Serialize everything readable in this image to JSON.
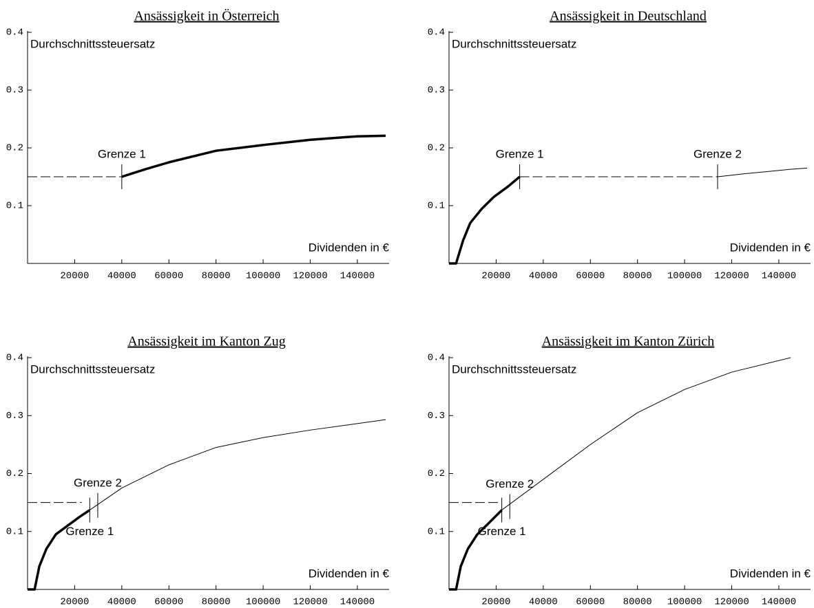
{
  "chart_data": [
    {
      "type": "line",
      "title": "Ansässigkeit in Österreich",
      "y_label": "Durchschnittssteuersatz",
      "x_label": "Dividenden in €",
      "xlim": [
        0,
        152000
      ],
      "ylim": [
        0,
        0.4
      ],
      "xticks": [
        20000,
        40000,
        60000,
        80000,
        100000,
        120000,
        140000
      ],
      "yticks": [
        0.1,
        0.2,
        0.3,
        0.4
      ],
      "series": [
        {
          "style": "dashed",
          "color": "#000000",
          "x": [
            0,
            40000
          ],
          "values": [
            0.15,
            0.15
          ]
        },
        {
          "style": "bold",
          "color": "#000000",
          "x": [
            40000,
            50000,
            60000,
            80000,
            100000,
            120000,
            140000,
            152000
          ],
          "values": [
            0.15,
            0.163,
            0.175,
            0.195,
            0.205,
            0.214,
            0.22,
            0.221
          ]
        }
      ],
      "annotations": [
        {
          "text": "Grenze 1",
          "x": 40000,
          "y": 0.15,
          "position": "above"
        }
      ]
    },
    {
      "type": "line",
      "title": "Ansässigkeit in Deutschland",
      "y_label": "Durchschnittssteuersatz",
      "x_label": "Dividenden in €",
      "xlim": [
        0,
        152000
      ],
      "ylim": [
        0,
        0.4
      ],
      "xticks": [
        20000,
        40000,
        60000,
        80000,
        100000,
        120000,
        140000
      ],
      "yticks": [
        0.1,
        0.2,
        0.3,
        0.4
      ],
      "series": [
        {
          "style": "bold",
          "color": "#000000",
          "x": [
            0,
            3000,
            6000,
            9000,
            14000,
            19000,
            25000,
            30000
          ],
          "values": [
            0,
            0,
            0.04,
            0.07,
            0.095,
            0.115,
            0.133,
            0.15
          ]
        },
        {
          "style": "dashed",
          "color": "#000000",
          "x": [
            30000,
            114000
          ],
          "values": [
            0.15,
            0.15
          ]
        },
        {
          "style": "thin",
          "color": "#000000",
          "x": [
            114000,
            125000,
            135000,
            145000,
            152000
          ],
          "values": [
            0.15,
            0.155,
            0.159,
            0.163,
            0.165
          ]
        }
      ],
      "annotations": [
        {
          "text": "Grenze 1",
          "x": 30000,
          "y": 0.15,
          "position": "above"
        },
        {
          "text": "Grenze 2",
          "x": 114000,
          "y": 0.15,
          "position": "above"
        }
      ]
    },
    {
      "type": "line",
      "title": "Ansässigkeit im Kanton Zug",
      "y_label": "Durchschnittssteuersatz",
      "x_label": "Dividenden in €",
      "xlim": [
        0,
        152000
      ],
      "ylim": [
        0,
        0.4
      ],
      "xticks": [
        20000,
        40000,
        60000,
        80000,
        100000,
        120000,
        140000
      ],
      "yticks": [
        0.1,
        0.2,
        0.3,
        0.4
      ],
      "series": [
        {
          "style": "dashed",
          "color": "#000000",
          "x": [
            0,
            23000
          ],
          "values": [
            0.15,
            0.15
          ]
        },
        {
          "style": "bold",
          "color": "#000000",
          "x": [
            0,
            3000,
            5000,
            8000,
            12000,
            17000,
            22000,
            26400
          ],
          "values": [
            0,
            0,
            0.04,
            0.07,
            0.095,
            0.11,
            0.125,
            0.137
          ]
        },
        {
          "style": "thin",
          "color": "#000000",
          "x": [
            26400,
            40000,
            60000,
            80000,
            100000,
            120000,
            152000
          ],
          "values": [
            0.137,
            0.175,
            0.215,
            0.245,
            0.262,
            0.275,
            0.293
          ]
        }
      ],
      "annotations": [
        {
          "text": "Grenze 1",
          "x": 26400,
          "y": 0.137,
          "position": "below"
        },
        {
          "text": "Grenze 2",
          "x": 29800,
          "y": 0.145,
          "position": "above"
        }
      ]
    },
    {
      "type": "line",
      "title": "Ansässigkeit im Kanton Zürich",
      "y_label": "Durchschnittssteuersatz",
      "x_label": "Dividenden in €",
      "xlim": [
        0,
        152000
      ],
      "ylim": [
        0,
        0.4
      ],
      "xticks": [
        20000,
        40000,
        60000,
        80000,
        100000,
        120000,
        140000
      ],
      "yticks": [
        0.1,
        0.2,
        0.3,
        0.4
      ],
      "series": [
        {
          "style": "dashed",
          "color": "#000000",
          "x": [
            0,
            21000
          ],
          "values": [
            0.15,
            0.15
          ]
        },
        {
          "style": "bold",
          "color": "#000000",
          "x": [
            0,
            3000,
            5000,
            8000,
            12000,
            17000,
            22400
          ],
          "values": [
            0,
            0,
            0.04,
            0.07,
            0.095,
            0.115,
            0.137
          ]
        },
        {
          "style": "thin",
          "color": "#000000",
          "x": [
            22400,
            40000,
            60000,
            80000,
            100000,
            120000,
            145000
          ],
          "values": [
            0.137,
            0.19,
            0.25,
            0.305,
            0.345,
            0.375,
            0.4
          ]
        }
      ],
      "annotations": [
        {
          "text": "Grenze 1",
          "x": 22400,
          "y": 0.137,
          "position": "below"
        },
        {
          "text": "Grenze 2",
          "x": 25800,
          "y": 0.143,
          "position": "above"
        }
      ]
    }
  ]
}
